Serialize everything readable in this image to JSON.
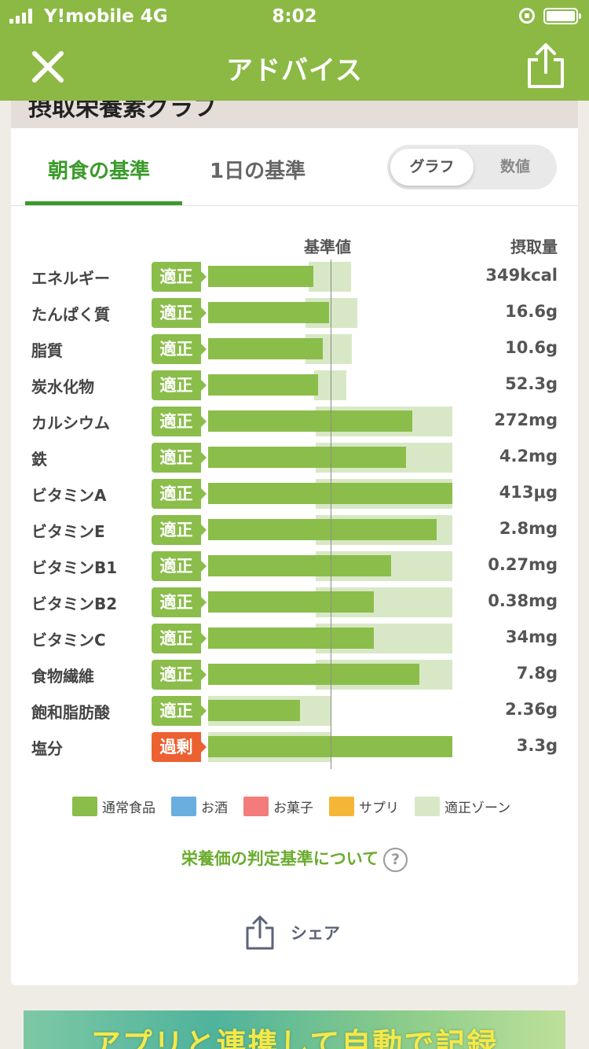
{
  "status_bar": {
    "carrier": "Y!mobile 4G",
    "time": "8:02"
  },
  "nav": {
    "title": "アドバイス",
    "close_icon": "close-icon",
    "share_icon": "share-icon"
  },
  "prev_section_text": "摂取栄養素グラフ",
  "tabs": [
    {
      "label": "朝食の基準",
      "active": true
    },
    {
      "label": "1日の基準",
      "active": false
    }
  ],
  "view_toggle": {
    "graph": "グラフ",
    "number": "数値",
    "selected": "グラフ"
  },
  "columns": {
    "reference": "基準値",
    "intake": "摂取量"
  },
  "nutrients": [
    {
      "name": "エネルギー",
      "status": "適正",
      "value": "349kcal",
      "ratio": 0.86,
      "zone": [
        0.82,
        1.17
      ]
    },
    {
      "name": "たんぱく質",
      "status": "適正",
      "value": "16.6g",
      "ratio": 0.99,
      "zone": [
        0.8,
        1.22
      ]
    },
    {
      "name": "脂質",
      "status": "適正",
      "value": "10.6g",
      "ratio": 0.94,
      "zone": [
        0.8,
        1.18
      ]
    },
    {
      "name": "炭水化物",
      "status": "適正",
      "value": "52.3g",
      "ratio": 0.9,
      "zone": [
        0.87,
        1.13
      ]
    },
    {
      "name": "カルシウム",
      "status": "適正",
      "value": "272mg",
      "ratio": 1.67,
      "zone": [
        0.88,
        2.0
      ]
    },
    {
      "name": "鉄",
      "status": "適正",
      "value": "4.2mg",
      "ratio": 1.62,
      "zone": [
        0.88,
        2.0
      ]
    },
    {
      "name": "ビタミンA",
      "status": "適正",
      "value": "413μg",
      "ratio": 2.0,
      "zone": [
        0.88,
        2.0
      ]
    },
    {
      "name": "ビタミンE",
      "status": "適正",
      "value": "2.8mg",
      "ratio": 1.87,
      "zone": [
        0.88,
        2.0
      ]
    },
    {
      "name": "ビタミンB1",
      "status": "適正",
      "value": "0.27mg",
      "ratio": 1.5,
      "zone": [
        0.88,
        2.0
      ]
    },
    {
      "name": "ビタミンB2",
      "status": "適正",
      "value": "0.38mg",
      "ratio": 1.36,
      "zone": [
        0.88,
        2.0
      ]
    },
    {
      "name": "ビタミンC",
      "status": "適正",
      "value": "34mg",
      "ratio": 1.36,
      "zone": [
        0.88,
        2.0
      ]
    },
    {
      "name": "食物繊維",
      "status": "適正",
      "value": "7.8g",
      "ratio": 1.73,
      "zone": [
        0.88,
        2.0
      ]
    },
    {
      "name": "飽和脂肪酸",
      "status": "適正",
      "value": "2.36g",
      "ratio": 0.75,
      "zone": [
        0.0,
        1.0
      ]
    },
    {
      "name": "塩分",
      "status": "過剰",
      "value": "3.3g",
      "ratio": 2.0,
      "zone": [
        0.0,
        1.0
      ]
    }
  ],
  "colors": {
    "bar_normal": "#8bbd4a",
    "zone": "#d8e8c6",
    "status_ok": "#8bbd4a",
    "status_over": "#ec6132"
  },
  "legend": [
    {
      "label": "通常食品",
      "color": "#8bbd4a"
    },
    {
      "label": "お酒",
      "color": "#6aaee0"
    },
    {
      "label": "お菓子",
      "color": "#f37b7b"
    },
    {
      "label": "サプリ",
      "color": "#f5b637"
    },
    {
      "label": "適正ゾーン",
      "color": "#d8e8c6"
    }
  ],
  "criteria_link": "栄養価の判定基準について",
  "share_label": "シェア",
  "banner_text": "アプリと連携して自動で記録"
}
